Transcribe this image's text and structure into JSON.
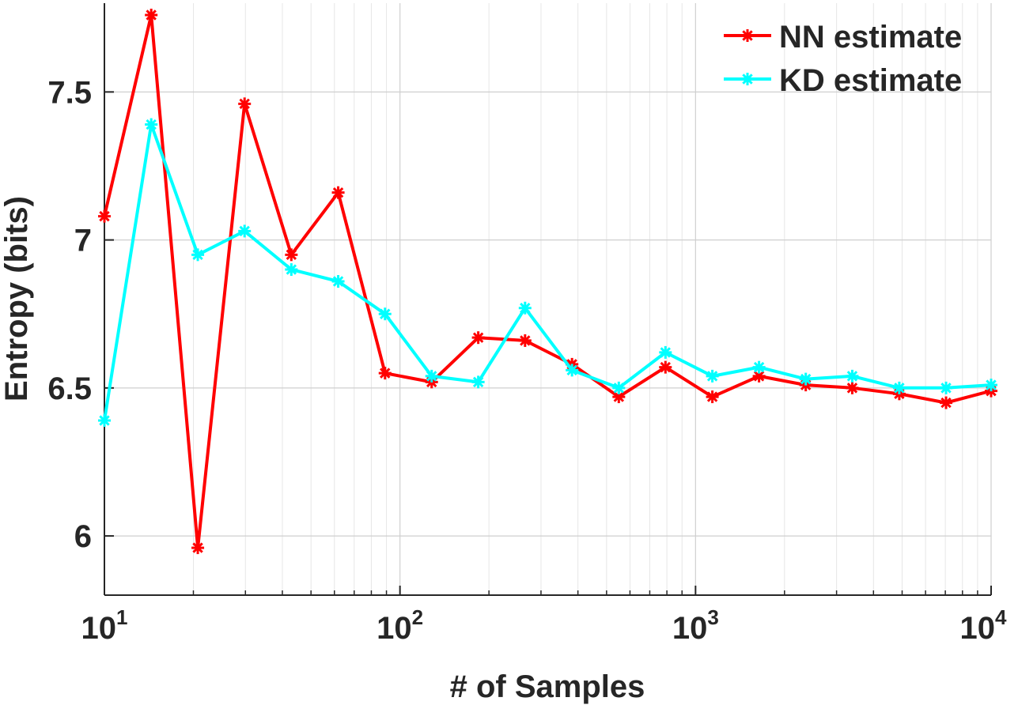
{
  "chart_data": {
    "type": "line",
    "title": "",
    "xlabel": "# of Samples",
    "ylabel": "Entropy (bits)",
    "xscale": "log",
    "xlim": [
      10,
      10000
    ],
    "ylim": [
      5.8,
      7.8
    ],
    "grid": true,
    "legend_position": "top-right",
    "x_ticks": [
      {
        "value": 10,
        "base": "10",
        "exp": "1"
      },
      {
        "value": 100,
        "base": "10",
        "exp": "2"
      },
      {
        "value": 1000,
        "base": "10",
        "exp": "3"
      },
      {
        "value": 10000,
        "base": "10",
        "exp": "4"
      }
    ],
    "y_ticks": [
      {
        "value": 6,
        "label": "6"
      },
      {
        "value": 6.5,
        "label": "6.5"
      },
      {
        "value": 7,
        "label": "7"
      },
      {
        "value": 7.5,
        "label": "7.5"
      }
    ],
    "x": [
      10,
      14.4,
      20.7,
      29.8,
      42.9,
      61.8,
      89.0,
      128,
      184,
      265,
      382,
      550,
      791,
      1140,
      1640,
      2360,
      3390,
      4890,
      7040,
      10000
    ],
    "series": [
      {
        "name": "NN estimate",
        "color": "#ff0000",
        "values": [
          7.08,
          7.76,
          5.96,
          7.46,
          6.95,
          7.16,
          6.55,
          6.52,
          6.67,
          6.66,
          6.58,
          6.47,
          6.57,
          6.47,
          6.54,
          6.51,
          6.5,
          6.48,
          6.45,
          6.49
        ]
      },
      {
        "name": "KD estimate",
        "color": "#00ffff",
        "values": [
          6.39,
          7.39,
          6.95,
          7.03,
          6.9,
          6.86,
          6.75,
          6.54,
          6.52,
          6.77,
          6.56,
          6.5,
          6.62,
          6.54,
          6.57,
          6.53,
          6.54,
          6.5,
          6.5,
          6.51
        ]
      }
    ]
  }
}
